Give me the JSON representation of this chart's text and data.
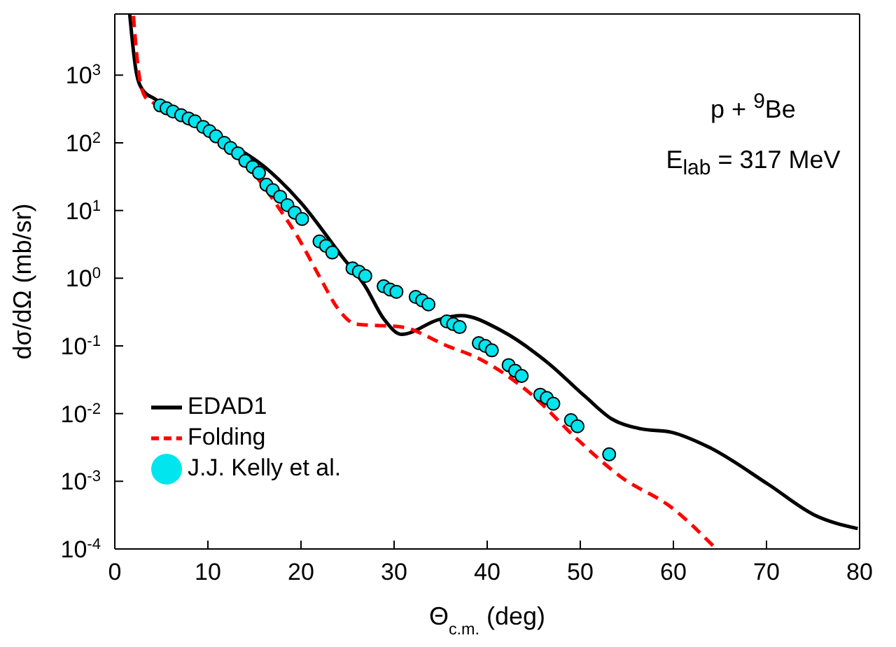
{
  "chart_data": {
    "type": "line",
    "xlabel": "Θ$_{c.m.}$ (deg)",
    "ylabel": "dσ/dΩ (mb/sr)",
    "annotations": [
      "p + $^{9}$Be",
      "E$_{lab}$ = 317 MeV"
    ],
    "xlim": [
      0,
      80
    ],
    "xticks": [
      0,
      10,
      20,
      30,
      40,
      50,
      60,
      70,
      80
    ],
    "ylim": [
      0.0001,
      8000
    ],
    "yticks": [
      {
        "value": 0.0001,
        "label": "10$^{-4}$"
      },
      {
        "value": 0.001,
        "label": "10$^{-3}$"
      },
      {
        "value": 0.01,
        "label": "10$^{-2}$"
      },
      {
        "value": 0.1,
        "label": "10$^{-1}$"
      },
      {
        "value": 1,
        "label": "10$^{0}$"
      },
      {
        "value": 10,
        "label": "10$^{1}$"
      },
      {
        "value": 100,
        "label": "10$^{2}$"
      },
      {
        "value": 1000,
        "label": "10$^{3}$"
      }
    ],
    "log": "y",
    "grid": false,
    "legend": "bottom left",
    "series": [
      {
        "name": "EDAD1",
        "color": "#000000",
        "line_style": "solid",
        "marker": "none",
        "x": [
          1.6,
          2.3,
          3.05,
          4.3,
          11.2,
          16.1,
          20,
          24.4,
          26.9,
          28.9,
          30.8,
          34.8,
          37.2,
          41.6,
          46.6,
          50.5,
          53.4,
          56.4,
          59.8,
          63.8,
          70.2,
          75.1,
          79.8
        ],
        "values": [
          8000,
          1120,
          590,
          445,
          120,
          44,
          13,
          2.1,
          0.76,
          0.25,
          0.148,
          0.245,
          0.28,
          0.166,
          0.055,
          0.018,
          0.0083,
          0.006,
          0.0053,
          0.0032,
          0.0009,
          0.00032,
          0.0002
        ]
      },
      {
        "name": "Folding",
        "color": "#ff0000",
        "line_style": "dashed",
        "marker": "none",
        "x": [
          2.0,
          2.56,
          3.3,
          3.8,
          15.6,
          17.6,
          19.5,
          22,
          24,
          25.9,
          30.8,
          35.7,
          39.2,
          44.6,
          49.5,
          54.4,
          59.8,
          64.6
        ],
        "values": [
          7500,
          1120,
          470,
          420,
          27,
          11,
          4.4,
          1.05,
          0.35,
          0.21,
          0.19,
          0.1,
          0.064,
          0.02,
          0.0044,
          0.00115,
          0.00041,
          0.0001
        ]
      },
      {
        "name": "J.J. Kelly et al.",
        "type": "scatter",
        "color": "#00e5ee",
        "marker": "circle",
        "x": [
          4.87,
          5.56,
          6.25,
          7.13,
          7.92,
          8.61,
          9.49,
          10.18,
          10.87,
          11.76,
          12.44,
          13.23,
          14.02,
          14.81,
          15.49,
          16.28,
          16.97,
          17.76,
          18.54,
          19.33,
          20.12,
          21.99,
          22.68,
          23.36,
          25.53,
          26.22,
          26.91,
          28.88,
          29.56,
          30.25,
          32.32,
          33.01,
          33.69,
          35.66,
          36.35,
          37.04,
          39.1,
          39.8,
          40.5,
          42.3,
          43.0,
          43.7,
          45.7,
          46.4,
          47.1,
          49.0,
          49.7,
          53.1
        ],
        "values": [
          357,
          324,
          290,
          256,
          229,
          208,
          172,
          149,
          125,
          100,
          84,
          70,
          54,
          44,
          36,
          24,
          20,
          16,
          12,
          9.3,
          7.5,
          3.5,
          3.0,
          2.4,
          1.4,
          1.25,
          1.08,
          0.76,
          0.68,
          0.63,
          0.53,
          0.47,
          0.41,
          0.23,
          0.21,
          0.19,
          0.11,
          0.1,
          0.086,
          0.052,
          0.043,
          0.036,
          0.019,
          0.017,
          0.014,
          0.008,
          0.0065,
          0.0025
        ]
      }
    ]
  }
}
